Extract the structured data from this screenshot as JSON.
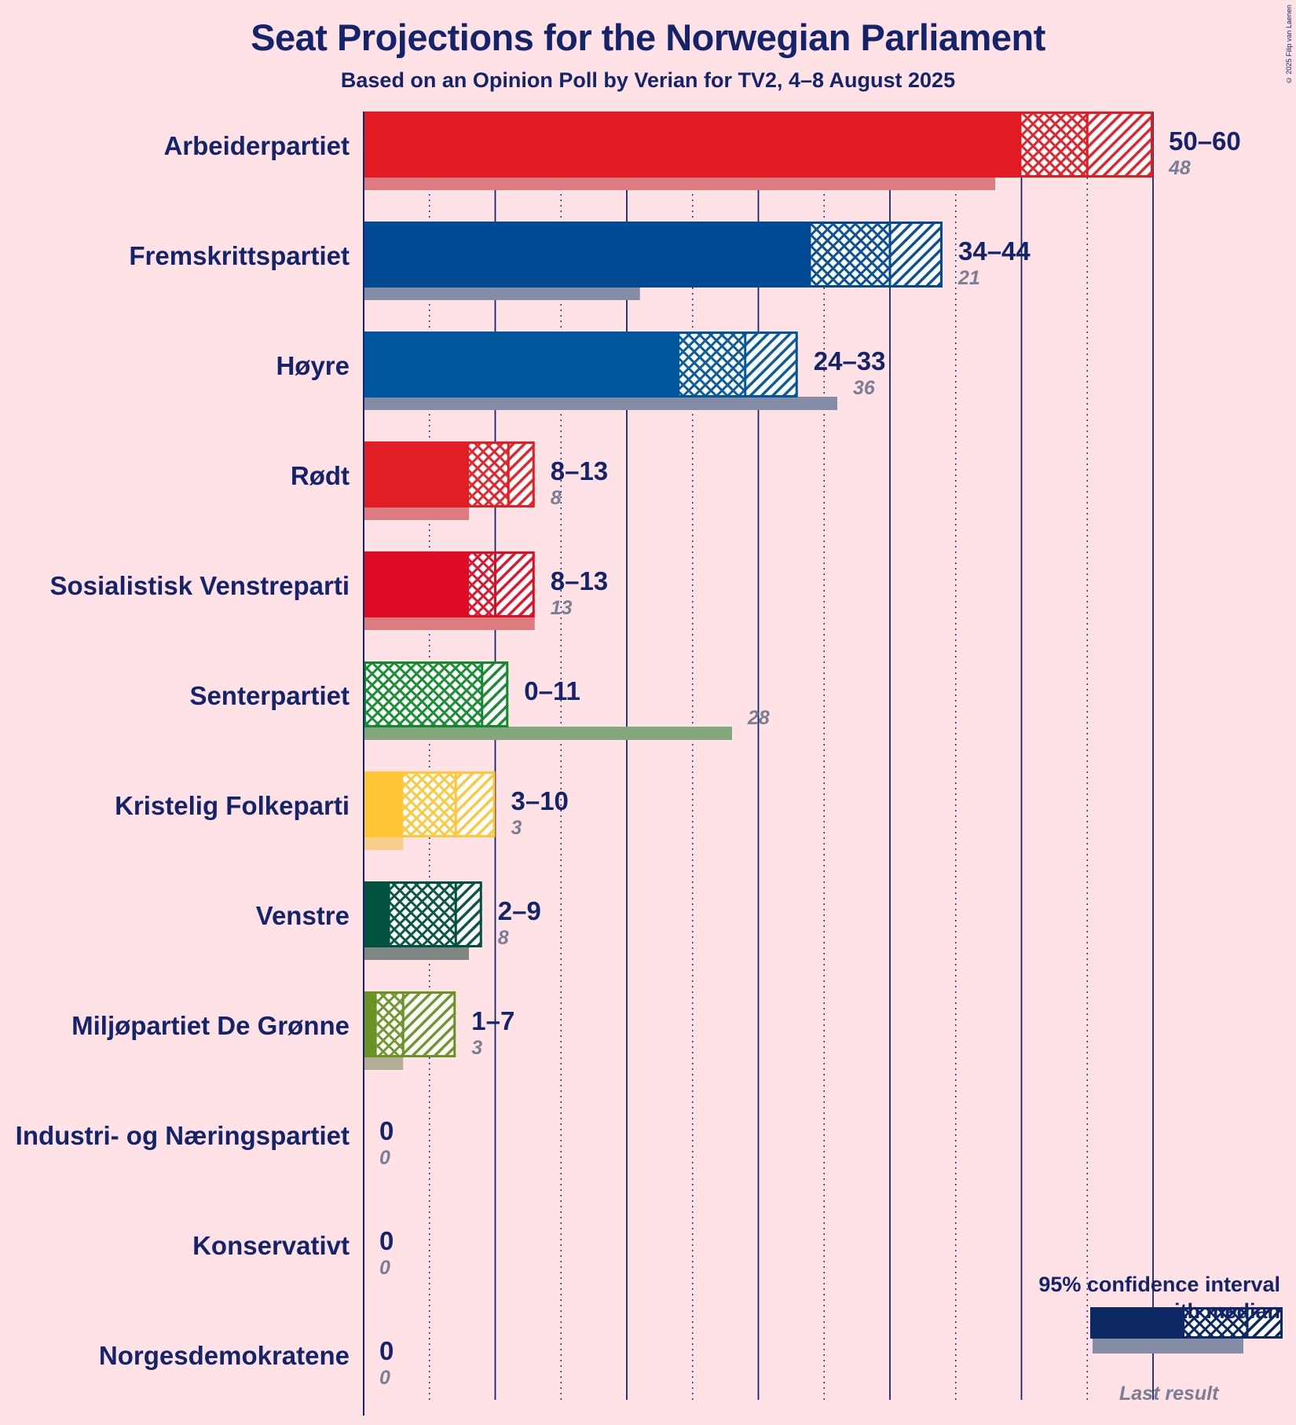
{
  "title": "Seat Projections for the Norwegian Parliament",
  "subtitle": "Based on an Opinion Poll by Verian for TV2, 4–8 August 2025",
  "copyright": "© 2025 Filip van Laenen",
  "legend": {
    "title_line1": "95% confidence interval",
    "title_line2": "with median",
    "last_result": "Last result",
    "example": {
      "low": 0,
      "median": 14.5,
      "high": 24.5,
      "last": 19.2,
      "color": "#0B2863"
    }
  },
  "chart_data": {
    "type": "bar",
    "title": "Seat Projections for the Norwegian Parliament",
    "subtitle": "Based on an Opinion Poll by Verian for TV2, 4–8 August 2025",
    "xlim": [
      0,
      60
    ],
    "gridlines": [
      5,
      10,
      15,
      20,
      25,
      30,
      35,
      40,
      45,
      50,
      55,
      60
    ],
    "parties": [
      {
        "name": "Arbeiderpartiet",
        "low": 50,
        "median": 55,
        "high": 60,
        "range_label": "50–60",
        "last": 48,
        "last_label": "48",
        "color": "#E01B22",
        "last_color": "#DC7B80"
      },
      {
        "name": "Fremskrittspartiet",
        "low": 34,
        "median": 40,
        "high": 44,
        "range_label": "34–44",
        "last": 21,
        "last_label": "21",
        "color": "#004A93",
        "last_color": "#848CA6"
      },
      {
        "name": "Høyre",
        "low": 24,
        "median": 29,
        "high": 33,
        "range_label": "24–33",
        "last": 36,
        "last_label": "36",
        "color": "#00569A",
        "last_color": "#848CA6"
      },
      {
        "name": "Rødt",
        "low": 8,
        "median": 11,
        "high": 13,
        "range_label": "8–13",
        "last": 8,
        "last_label": "8",
        "color": "#E11E23",
        "last_color": "#DC7B80"
      },
      {
        "name": "Sosialistisk Venstreparti",
        "low": 8,
        "median": 10,
        "high": 13,
        "range_label": "8–13",
        "last": 13,
        "last_label": "13",
        "color": "#DE0B24",
        "last_color": "#DC7B80"
      },
      {
        "name": "Senterpartiet",
        "low": 0,
        "median": 9,
        "high": 11,
        "range_label": "0–11",
        "last": 28,
        "last_label": "28",
        "color": "#108A2D",
        "last_color": "#83A87E"
      },
      {
        "name": "Kristelig Folkeparti",
        "low": 3,
        "median": 7,
        "high": 10,
        "range_label": "3–10",
        "last": 3,
        "last_label": "3",
        "color": "#FFC738",
        "last_color": "#F9CD8C"
      },
      {
        "name": "Venstre",
        "low": 2,
        "median": 7,
        "high": 9,
        "range_label": "2–9",
        "last": 8,
        "last_label": "8",
        "color": "#00513D",
        "last_color": "#7E8783"
      },
      {
        "name": "Miljøpartiet De Grønne",
        "low": 1,
        "median": 3,
        "high": 7,
        "range_label": "1–7",
        "last": 3,
        "last_label": "3",
        "color": "#6A9325",
        "last_color": "#B1AE95"
      },
      {
        "name": "Industri- og Næringspartiet",
        "low": 0,
        "median": 0,
        "high": 0,
        "range_label": "0",
        "last": 0,
        "last_label": "0",
        "color": "#14246A",
        "last_color": "#848CA6"
      },
      {
        "name": "Konservativt",
        "low": 0,
        "median": 0,
        "high": 0,
        "range_label": "0",
        "last": 0,
        "last_label": "0",
        "color": "#14246A",
        "last_color": "#848CA6"
      },
      {
        "name": "Norgesdemokratene",
        "low": 0,
        "median": 0,
        "high": 0,
        "range_label": "0",
        "last": 0,
        "last_label": "0",
        "color": "#14246A",
        "last_color": "#848CA6"
      }
    ]
  }
}
